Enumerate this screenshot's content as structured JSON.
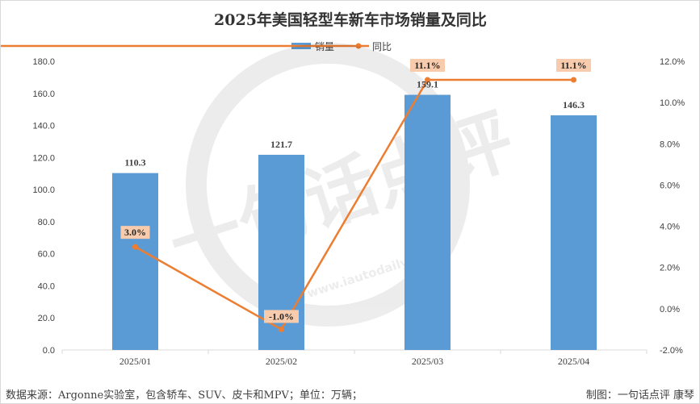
{
  "chart_data": {
    "type": "bar+line",
    "title": "2025年美国轻型车新车市场销量及同比",
    "categories": [
      "2025/01",
      "2025/02",
      "2025/03",
      "2025/04"
    ],
    "series": [
      {
        "name": "销量",
        "type": "bar",
        "axis": "left",
        "values": [
          110.3,
          121.7,
          159.1,
          146.3
        ],
        "labels": [
          "110.3",
          "121.7",
          "159.1",
          "146.3"
        ],
        "color": "#5b9bd5"
      },
      {
        "name": "同比",
        "type": "line",
        "axis": "right",
        "values": [
          3.0,
          -1.0,
          11.1,
          11.1
        ],
        "labels": [
          "3.0%",
          "-1.0%",
          "11.1%",
          "11.1%"
        ],
        "color": "#ed7d31"
      }
    ],
    "y_left": {
      "min": 0,
      "max": 180,
      "step": 20,
      "tick_labels": [
        "0.0",
        "20.0",
        "40.0",
        "60.0",
        "80.0",
        "100.0",
        "120.0",
        "140.0",
        "160.0",
        "180.0"
      ]
    },
    "y_right": {
      "min": -2,
      "max": 12,
      "step": 2,
      "tick_labels": [
        "-2.0%",
        "0.0%",
        "2.0%",
        "4.0%",
        "6.0%",
        "8.0%",
        "10.0%",
        "12.0%"
      ]
    },
    "legend": {
      "position": "top-center"
    },
    "grid": false,
    "label_box_color": "#f8cbad"
  },
  "footer": {
    "source": "数据来源：Argonne实验室，包含轿车、SUV、皮卡和MPV；单位：万辆；",
    "credit": "制图：一句话点评  康琴"
  },
  "watermark": {
    "text": "一句话点评",
    "url": "www.iautodaily.com"
  }
}
